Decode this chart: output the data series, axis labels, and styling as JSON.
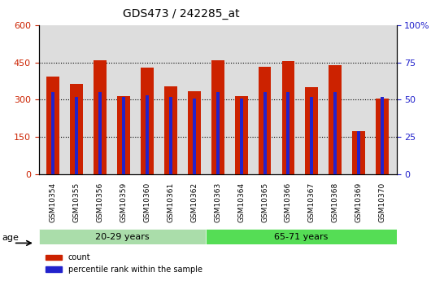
{
  "title": "GDS473 / 242285_at",
  "samples": [
    "GSM10354",
    "GSM10355",
    "GSM10356",
    "GSM10359",
    "GSM10360",
    "GSM10361",
    "GSM10362",
    "GSM10363",
    "GSM10364",
    "GSM10365",
    "GSM10366",
    "GSM10367",
    "GSM10368",
    "GSM10369",
    "GSM10370"
  ],
  "count_values": [
    395,
    365,
    460,
    315,
    430,
    355,
    335,
    460,
    315,
    432,
    455,
    350,
    440,
    175,
    305
  ],
  "percentile_values": [
    55,
    52,
    55,
    52,
    53,
    52,
    51,
    55,
    51,
    55,
    55,
    52,
    55,
    29,
    52
  ],
  "group1_label": "20-29 years",
  "group2_label": "65-71 years",
  "group1_count": 7,
  "group2_count": 8,
  "age_label": "age",
  "legend_count": "count",
  "legend_percentile": "percentile rank within the sample",
  "bar_color_red": "#cc2200",
  "bar_color_blue": "#2222cc",
  "group1_color": "#aaddaa",
  "group2_color": "#55dd55",
  "ylim_left": [
    0,
    600
  ],
  "ylim_right": [
    0,
    100
  ],
  "yticks_left": [
    0,
    150,
    300,
    450,
    600
  ],
  "ytick_labels_left": [
    "0",
    "150",
    "300",
    "450",
    "600"
  ],
  "yticks_right": [
    0,
    25,
    50,
    75,
    100
  ],
  "ytick_labels_right": [
    "0",
    "25",
    "50",
    "75",
    "100%"
  ],
  "bg_color": "#dddddd",
  "plot_bg_color": "#ffffff"
}
